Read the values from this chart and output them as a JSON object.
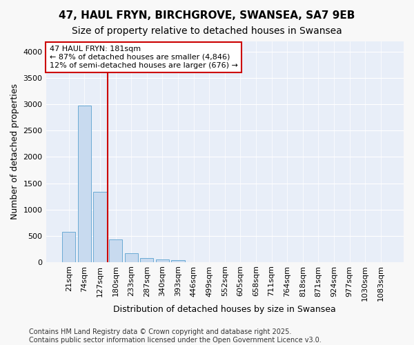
{
  "title": "47, HAUL FRYN, BIRCHGROVE, SWANSEA, SA7 9EB",
  "subtitle": "Size of property relative to detached houses in Swansea",
  "xlabel": "Distribution of detached houses by size in Swansea",
  "ylabel": "Number of detached properties",
  "bar_color": "#c8daef",
  "bar_edge_color": "#6aaad4",
  "bg_color": "#e8eef8",
  "grid_color": "#ffffff",
  "vline_color": "#cc0000",
  "annotation_text": "47 HAUL FRYN: 181sqm\n← 87% of detached houses are smaller (4,846)\n12% of semi-detached houses are larger (676) →",
  "categories": [
    "21sqm",
    "74sqm",
    "127sqm",
    "180sqm",
    "233sqm",
    "287sqm",
    "340sqm",
    "393sqm",
    "446sqm",
    "499sqm",
    "552sqm",
    "605sqm",
    "658sqm",
    "711sqm",
    "764sqm",
    "818sqm",
    "871sqm",
    "924sqm",
    "977sqm",
    "1030sqm",
    "1083sqm"
  ],
  "values": [
    580,
    2980,
    1340,
    430,
    170,
    80,
    50,
    40,
    0,
    0,
    0,
    0,
    0,
    0,
    0,
    0,
    0,
    0,
    0,
    0,
    0
  ],
  "ylim": [
    0,
    4200
  ],
  "yticks": [
    0,
    500,
    1000,
    1500,
    2000,
    2500,
    3000,
    3500,
    4000
  ],
  "footer_text": "Contains HM Land Registry data © Crown copyright and database right 2025.\nContains public sector information licensed under the Open Government Licence v3.0.",
  "title_fontsize": 11,
  "subtitle_fontsize": 10,
  "xlabel_fontsize": 9,
  "ylabel_fontsize": 9,
  "tick_fontsize": 8,
  "annot_fontsize": 8,
  "footer_fontsize": 7,
  "fig_bg": "#f8f8f8",
  "vline_pos": 2.5
}
